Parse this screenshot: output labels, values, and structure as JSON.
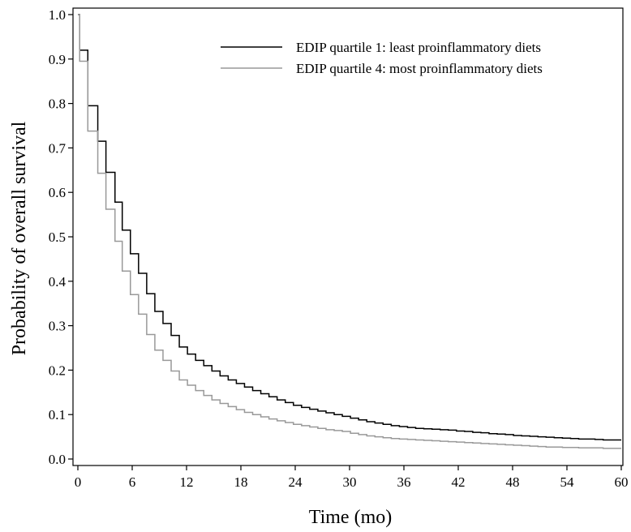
{
  "chart_data": {
    "type": "line",
    "step": true,
    "xlabel": "Time (mo)",
    "ylabel": "Probability of overall survival",
    "xlim": [
      0,
      60
    ],
    "ylim": [
      0,
      1.0
    ],
    "xticks": [
      0,
      6,
      12,
      18,
      24,
      30,
      36,
      42,
      48,
      54,
      60
    ],
    "yticks": [
      0.0,
      0.1,
      0.2,
      0.3,
      0.4,
      0.5,
      0.6,
      0.7,
      0.8,
      0.9,
      1.0
    ],
    "ytick_labels": [
      "0.0",
      "0.1",
      "0.2",
      "0.3",
      "0.4",
      "0.5",
      "0.6",
      "0.7",
      "0.8",
      "0.9",
      "1.0"
    ],
    "grid": false,
    "legend_position": "top-right",
    "series": [
      {
        "name": "EDIP quartile 1: least proinflammatory diets",
        "color": "#000000",
        "x": [
          0,
          0.2,
          1.1,
          2.2,
          3.1,
          4.1,
          4.9,
          5.8,
          6.7,
          7.6,
          8.5,
          9.4,
          10.3,
          11.2,
          12.1,
          13.0,
          13.9,
          14.8,
          15.7,
          16.6,
          17.5,
          18.4,
          19.3,
          20.2,
          21.1,
          22.0,
          22.9,
          23.8,
          24.7,
          25.6,
          26.5,
          27.4,
          28.3,
          29.2,
          30.1,
          31.0,
          31.9,
          32.8,
          33.7,
          34.6,
          35.5,
          36.4,
          37.3,
          38.2,
          39.1,
          40.0,
          40.9,
          41.8,
          42.7,
          43.6,
          44.5,
          45.4,
          46.3,
          47.2,
          48.1,
          49.0,
          49.9,
          50.8,
          51.7,
          52.6,
          53.5,
          54.4,
          55.3,
          56.2,
          57.1,
          58.0,
          60.0
        ],
        "y": [
          1.0,
          0.92,
          0.795,
          0.715,
          0.645,
          0.578,
          0.515,
          0.462,
          0.418,
          0.372,
          0.332,
          0.305,
          0.278,
          0.252,
          0.236,
          0.222,
          0.21,
          0.198,
          0.187,
          0.178,
          0.17,
          0.162,
          0.154,
          0.147,
          0.14,
          0.133,
          0.127,
          0.121,
          0.116,
          0.112,
          0.108,
          0.104,
          0.1,
          0.096,
          0.092,
          0.088,
          0.084,
          0.081,
          0.078,
          0.075,
          0.073,
          0.071,
          0.069,
          0.068,
          0.067,
          0.066,
          0.065,
          0.063,
          0.062,
          0.06,
          0.059,
          0.057,
          0.056,
          0.055,
          0.053,
          0.052,
          0.051,
          0.05,
          0.049,
          0.048,
          0.047,
          0.046,
          0.045,
          0.045,
          0.044,
          0.043,
          0.043
        ]
      },
      {
        "name": "EDIP quartile 4: most proinflammatory diets",
        "color": "#999999",
        "x": [
          0,
          0.2,
          1.1,
          2.2,
          3.1,
          4.1,
          4.9,
          5.8,
          6.7,
          7.6,
          8.5,
          9.4,
          10.3,
          11.2,
          12.1,
          13.0,
          13.9,
          14.8,
          15.7,
          16.6,
          17.5,
          18.4,
          19.3,
          20.2,
          21.1,
          22.0,
          22.9,
          23.8,
          24.7,
          25.6,
          26.5,
          27.4,
          28.3,
          29.2,
          30.1,
          31.0,
          31.9,
          32.8,
          33.7,
          34.6,
          35.5,
          36.4,
          37.3,
          38.2,
          39.1,
          40.0,
          40.9,
          41.8,
          42.7,
          43.6,
          44.5,
          45.4,
          46.3,
          47.2,
          48.1,
          49.0,
          49.9,
          50.8,
          51.7,
          52.6,
          53.5,
          54.4,
          55.3,
          56.2,
          57.1,
          58.0,
          60.0
        ],
        "y": [
          1.0,
          0.895,
          0.738,
          0.643,
          0.562,
          0.49,
          0.423,
          0.37,
          0.326,
          0.28,
          0.245,
          0.222,
          0.198,
          0.178,
          0.166,
          0.154,
          0.143,
          0.133,
          0.125,
          0.118,
          0.111,
          0.105,
          0.1,
          0.095,
          0.09,
          0.086,
          0.082,
          0.078,
          0.075,
          0.072,
          0.069,
          0.066,
          0.064,
          0.062,
          0.058,
          0.055,
          0.052,
          0.05,
          0.048,
          0.046,
          0.045,
          0.044,
          0.043,
          0.042,
          0.041,
          0.04,
          0.039,
          0.038,
          0.037,
          0.036,
          0.035,
          0.034,
          0.033,
          0.032,
          0.031,
          0.03,
          0.029,
          0.028,
          0.027,
          0.027,
          0.026,
          0.026,
          0.025,
          0.025,
          0.025,
          0.024,
          0.024
        ]
      }
    ]
  }
}
